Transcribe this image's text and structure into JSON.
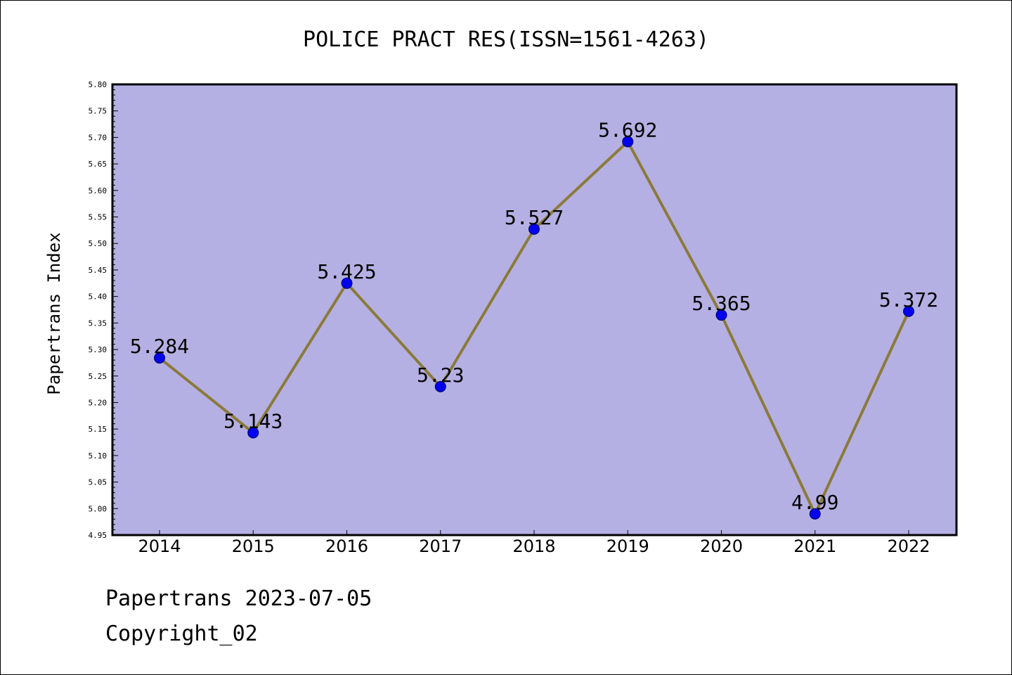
{
  "chart_data": {
    "type": "line",
    "title": "POLICE PRACT RES(ISSN=1561-4263)",
    "xlabel": "",
    "ylabel": "Papertrans Index",
    "categories": [
      "2014",
      "2015",
      "2016",
      "2017",
      "2018",
      "2019",
      "2020",
      "2021",
      "2022"
    ],
    "values": [
      5.284,
      5.143,
      5.425,
      5.23,
      5.527,
      5.692,
      5.365,
      4.99,
      5.372
    ],
    "data_labels": [
      "5.284",
      "5.143",
      "5.425",
      "5.23",
      "5.527",
      "5.692",
      "5.365",
      "4.99",
      "5.372"
    ],
    "ylim": [
      4.95,
      5.8
    ],
    "y_ticks": [
      "4.95",
      "5.00",
      "5.05",
      "5.10",
      "5.15",
      "5.20",
      "5.25",
      "5.30",
      "5.35",
      "5.40",
      "5.45",
      "5.50",
      "5.55",
      "5.60",
      "5.65",
      "5.70",
      "5.75",
      "5.80"
    ],
    "grid": false,
    "legend": "none",
    "colors": {
      "plot_background": "#b5b0e3",
      "line": "#8b7a3a",
      "marker": "#0000ee",
      "marker_edge": "#000066"
    }
  },
  "footer": {
    "date_line": "Papertrans 2023-07-05",
    "copyright_line": "Copyright_02"
  }
}
